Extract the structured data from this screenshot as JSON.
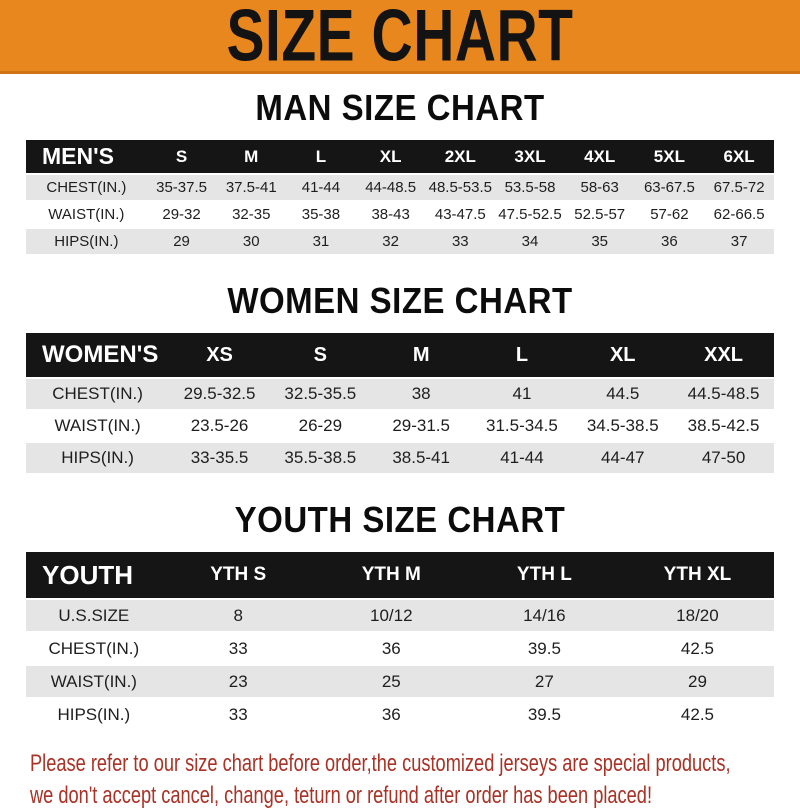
{
  "banner": {
    "title": "SIZE CHART"
  },
  "men": {
    "heading": "MAN SIZE CHART",
    "header": [
      "MEN'S",
      "S",
      "M",
      "L",
      "XL",
      "2XL",
      "3XL",
      "4XL",
      "5XL",
      "6XL"
    ],
    "rows": [
      [
        "CHEST(IN.)",
        "35-37.5",
        "37.5-41",
        "41-44",
        "44-48.5",
        "48.5-53.5",
        "53.5-58",
        "58-63",
        "63-67.5",
        "67.5-72"
      ],
      [
        "WAIST(IN.)",
        "29-32",
        "32-35",
        "35-38",
        "38-43",
        "43-47.5",
        "47.5-52.5",
        "52.5-57",
        "57-62",
        "62-66.5"
      ],
      [
        "HIPS(IN.)",
        "29",
        "30",
        "31",
        "32",
        "33",
        "34",
        "35",
        "36",
        "37"
      ]
    ]
  },
  "women": {
    "heading": "WOMEN SIZE CHART",
    "header": [
      "WOMEN'S",
      "XS",
      "S",
      "M",
      "L",
      "XL",
      "XXL"
    ],
    "rows": [
      [
        "CHEST(IN.)",
        "29.5-32.5",
        "32.5-35.5",
        "38",
        "41",
        "44.5",
        "44.5-48.5"
      ],
      [
        "WAIST(IN.)",
        "23.5-26",
        "26-29",
        "29-31.5",
        "31.5-34.5",
        "34.5-38.5",
        "38.5-42.5"
      ],
      [
        "HIPS(IN.)",
        "33-35.5",
        "35.5-38.5",
        "38.5-41",
        "41-44",
        "44-47",
        "47-50"
      ]
    ]
  },
  "youth": {
    "heading": "YOUTH SIZE CHART",
    "header": [
      "YOUTH",
      "YTH S",
      "YTH M",
      "YTH L",
      "YTH XL"
    ],
    "rows": [
      [
        "U.S.SIZE",
        "8",
        "10/12",
        "14/16",
        "18/20"
      ],
      [
        "CHEST(IN.)",
        "33",
        "36",
        "39.5",
        "42.5"
      ],
      [
        "WAIST(IN.)",
        "23",
        "25",
        "27",
        "29"
      ],
      [
        "HIPS(IN.)",
        "33",
        "36",
        "39.5",
        "42.5"
      ]
    ]
  },
  "note": {
    "line1": "Please refer to our size chart before order,the customized jerseys are special products,",
    "line2": "we don't accept cancel, change, teturn or refund after order has been placed!"
  },
  "colors": {
    "banner_orange": "#E8871E",
    "banner_border": "#CF7412",
    "header_black": "#151515",
    "stripe_gray": "#E5E5E5",
    "note_red": "#A93226"
  }
}
